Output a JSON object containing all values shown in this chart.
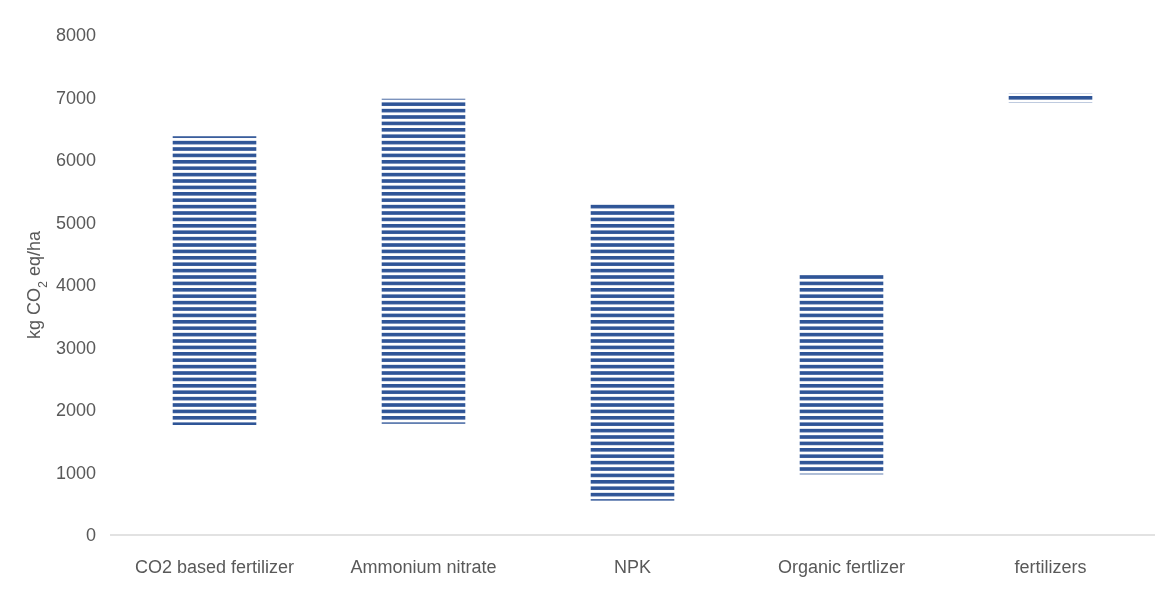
{
  "chart_data": {
    "type": "bar",
    "ylabel": "kg CO$_{2}$ eq/ha",
    "categories": [
      "CO2 based fertilizer",
      "Ammonium nitrate",
      "NPK",
      "Organic fertlizer",
      "fertilizers"
    ],
    "base": [
      1760,
      1780,
      550,
      970,
      6920
    ],
    "values": [
      4620,
      5200,
      4750,
      3210,
      150
    ],
    "color": "#2f5597",
    "ylim": [
      0,
      8000
    ],
    "yticks": [
      0,
      1000,
      2000,
      3000,
      4000,
      5000,
      6000,
      7000,
      8000
    ],
    "grid": false
  }
}
